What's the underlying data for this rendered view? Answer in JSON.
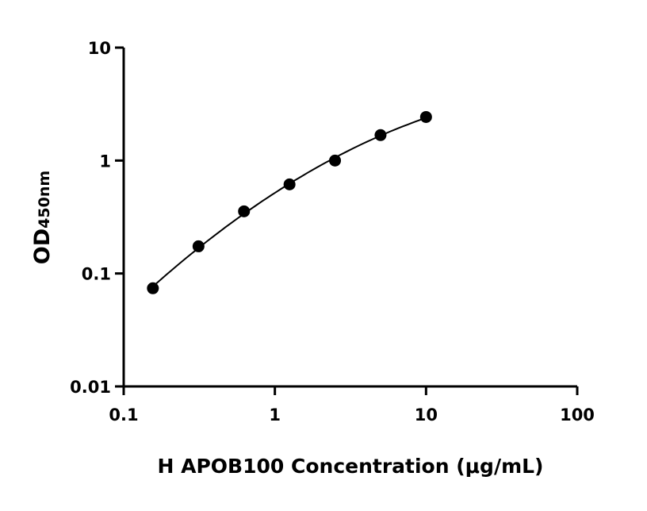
{
  "chart_data": {
    "type": "scatter",
    "title": "",
    "xlabel": "H APOB100 Concentration (μg/mL)",
    "ylabel_main": "OD",
    "ylabel_sub": "450nm",
    "x_scale": "log",
    "y_scale": "log",
    "xlim": [
      0.1,
      100
    ],
    "ylim": [
      0.01,
      10
    ],
    "x_ticks": [
      0.1,
      1,
      10,
      100
    ],
    "x_tick_labels": [
      "0.1",
      "1",
      "10",
      "100"
    ],
    "y_ticks": [
      0.01,
      0.1,
      1,
      10
    ],
    "y_tick_labels": [
      "0.01",
      "0.1",
      "1",
      "10"
    ],
    "grid": false,
    "legend": "none",
    "fit_curve": true,
    "series": [
      {
        "x": [
          0.156,
          0.3125,
          0.625,
          1.25,
          2.5,
          5,
          10
        ],
        "y": [
          0.074,
          0.174,
          0.355,
          0.615,
          1.0,
          1.68,
          2.43
        ]
      }
    ],
    "colors": {
      "marker": "#000000",
      "line": "#000000"
    }
  }
}
